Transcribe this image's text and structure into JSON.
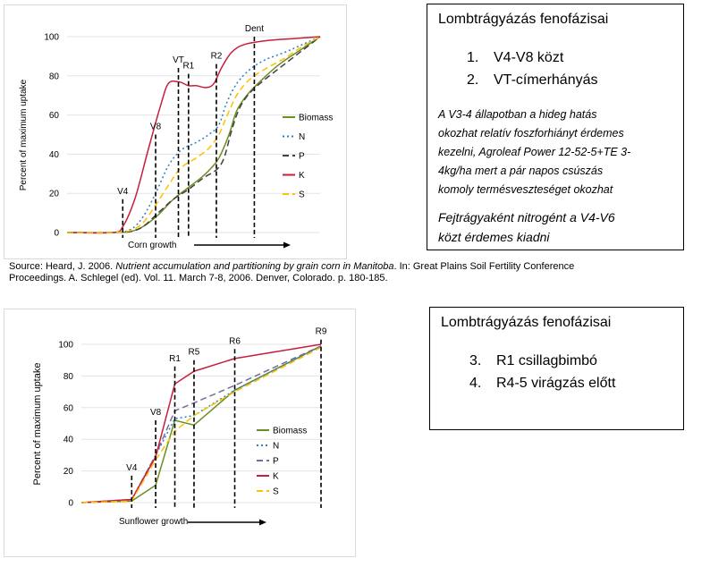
{
  "chart_data": [
    {
      "type": "line",
      "ylim": [
        0,
        100
      ],
      "yticks": [
        "0",
        "20",
        "40",
        "60",
        "80",
        "100"
      ],
      "xlabel": "Corn growth",
      "legend_position": "right",
      "series": [
        {
          "name": "Biomass",
          "color": "#6b8e23",
          "dash": "solid",
          "points": [
            [
              0,
              0
            ],
            [
              0.18,
              0
            ],
            [
              0.25,
              0.5
            ],
            [
              0.3,
              3
            ],
            [
              0.36,
              9
            ],
            [
              0.42,
              17
            ],
            [
              0.48,
              23
            ],
            [
              0.53,
              28
            ],
            [
              0.57,
              33
            ],
            [
              0.6,
              38
            ],
            [
              0.64,
              50
            ],
            [
              0.67,
              62
            ],
            [
              0.71,
              70
            ],
            [
              0.77,
              78
            ],
            [
              0.84,
              86
            ],
            [
              0.92,
              93
            ],
            [
              1,
              100
            ]
          ]
        },
        {
          "name": "N",
          "color": "#2e7fc1",
          "dash": "dot",
          "points": [
            [
              0,
              0
            ],
            [
              0.18,
              0
            ],
            [
              0.25,
              1.5
            ],
            [
              0.3,
              8
            ],
            [
              0.35,
              20
            ],
            [
              0.4,
              34
            ],
            [
              0.45,
              42
            ],
            [
              0.51,
              46
            ],
            [
              0.56,
              50
            ],
            [
              0.6,
              55
            ],
            [
              0.63,
              66
            ],
            [
              0.67,
              76
            ],
            [
              0.72,
              83
            ],
            [
              0.78,
              88
            ],
            [
              0.86,
              92
            ],
            [
              0.93,
              96
            ],
            [
              1,
              100
            ]
          ]
        },
        {
          "name": "P",
          "color": "#404040",
          "dash": "dash",
          "points": [
            [
              0,
              0
            ],
            [
              0.18,
              0
            ],
            [
              0.25,
              0.5
            ],
            [
              0.3,
              3
            ],
            [
              0.36,
              10
            ],
            [
              0.42,
              17
            ],
            [
              0.48,
              22
            ],
            [
              0.54,
              28
            ],
            [
              0.59,
              32
            ],
            [
              0.62,
              38
            ],
            [
              0.65,
              52
            ],
            [
              0.68,
              63
            ],
            [
              0.72,
              71
            ],
            [
              0.78,
              78
            ],
            [
              0.85,
              85
            ],
            [
              0.93,
              93
            ],
            [
              1,
              100
            ]
          ]
        },
        {
          "name": "K",
          "color": "#c81e3c",
          "dash": "solid",
          "points": [
            [
              0,
              0
            ],
            [
              0.18,
              0
            ],
            [
              0.22,
              3
            ],
            [
              0.27,
              18
            ],
            [
              0.32,
              42
            ],
            [
              0.37,
              65
            ],
            [
              0.4,
              76
            ],
            [
              0.44,
              77
            ],
            [
              0.48,
              75
            ],
            [
              0.51,
              75
            ],
            [
              0.55,
              74
            ],
            [
              0.58,
              76
            ],
            [
              0.61,
              84
            ],
            [
              0.65,
              92
            ],
            [
              0.7,
              96
            ],
            [
              0.79,
              98
            ],
            [
              0.89,
              99
            ],
            [
              1,
              100
            ]
          ]
        },
        {
          "name": "S",
          "color": "#ffc000",
          "dash": "dash",
          "points": [
            [
              0,
              0
            ],
            [
              0.18,
              0
            ],
            [
              0.25,
              1
            ],
            [
              0.3,
              5
            ],
            [
              0.35,
              14
            ],
            [
              0.4,
              24
            ],
            [
              0.45,
              33
            ],
            [
              0.51,
              38
            ],
            [
              0.56,
              43
            ],
            [
              0.6,
              50
            ],
            [
              0.63,
              59
            ],
            [
              0.67,
              70
            ],
            [
              0.72,
              78
            ],
            [
              0.79,
              84
            ],
            [
              0.86,
              89
            ],
            [
              0.93,
              95
            ],
            [
              1,
              100
            ]
          ]
        }
      ],
      "stages": [
        {
          "label": "V4",
          "x": 0.22,
          "y_top": 17
        },
        {
          "label": "V8",
          "x": 0.35,
          "y_top": 50
        },
        {
          "label": "VT",
          "x": 0.44,
          "y_top": 84
        },
        {
          "label": "R1",
          "x": 0.48,
          "y_top": 81
        },
        {
          "label": "R2",
          "x": 0.59,
          "y_top": 86
        },
        {
          "label": "Dent",
          "x": 0.74,
          "y_top": 100
        }
      ]
    },
    {
      "type": "line",
      "ylim": [
        0,
        100
      ],
      "yticks": [
        "0",
        "20",
        "40",
        "60",
        "80",
        "100"
      ],
      "ylabel": "Percent of maximum uptake",
      "xlabel": "Sunflower growth",
      "legend_position": "right",
      "series": [
        {
          "name": "Biomass",
          "color": "#6b8e23",
          "dash": "solid",
          "points": [
            [
              0,
              0
            ],
            [
              0.21,
              1
            ],
            [
              0.31,
              11
            ],
            [
              0.39,
              52
            ],
            [
              0.47,
              49
            ],
            [
              0.64,
              71
            ],
            [
              1,
              99
            ]
          ]
        },
        {
          "name": "N",
          "color": "#2e7fc1",
          "dash": "dot",
          "points": [
            [
              0,
              0
            ],
            [
              0.21,
              2
            ],
            [
              0.31,
              30
            ],
            [
              0.39,
              53
            ],
            [
              0.47,
              55
            ],
            [
              0.64,
              71
            ],
            [
              1,
              99
            ]
          ]
        },
        {
          "name": "P",
          "color": "#7a6b9e",
          "dash": "dash",
          "points": [
            [
              0,
              0
            ],
            [
              0.21,
              2
            ],
            [
              0.31,
              30
            ],
            [
              0.39,
              58
            ],
            [
              0.47,
              63
            ],
            [
              0.64,
              74
            ],
            [
              1,
              99
            ]
          ]
        },
        {
          "name": "K",
          "color": "#c81e3c",
          "dash": "solid",
          "points": [
            [
              0,
              0
            ],
            [
              0.21,
              2
            ],
            [
              0.31,
              29
            ],
            [
              0.39,
              75
            ],
            [
              0.47,
              83
            ],
            [
              0.64,
              91
            ],
            [
              1,
              100
            ]
          ]
        },
        {
          "name": "S",
          "color": "#ffc000",
          "dash": "dash",
          "points": [
            [
              0,
              0
            ],
            [
              0.21,
              1
            ],
            [
              0.31,
              27
            ],
            [
              0.39,
              45
            ],
            [
              0.47,
              55
            ],
            [
              0.64,
              70
            ],
            [
              1,
              98
            ]
          ]
        }
      ],
      "stages": [
        {
          "label": "V4",
          "x": 0.21,
          "y_top": 17
        },
        {
          "label": "V8",
          "x": 0.31,
          "y_top": 52
        },
        {
          "label": "R1",
          "x": 0.39,
          "y_top": 86
        },
        {
          "label": "R5",
          "x": 0.47,
          "y_top": 90
        },
        {
          "label": "R6",
          "x": 0.64,
          "y_top": 97
        },
        {
          "label": "R9",
          "x": 1.0,
          "y_top": 103
        }
      ]
    }
  ],
  "labels": {
    "chart1_ylabel": "Percent of maximum uptake",
    "chart2_ylabel": "Percent of maximum uptake"
  },
  "info1": {
    "title": "Lombtrágyázás fenofázisai",
    "items": [
      {
        "num": "1.",
        "text": "V4-V8 közt"
      },
      {
        "num": "2.",
        "text": "VT-címerhányás"
      }
    ],
    "note_lines": [
      "A V3-4 állapotban a hideg hatás",
      "okozhat relatív foszforhiányt érdemes",
      "kezelni, Agroleaf Power 12-52-5+TE 3-",
      "4kg/ha mert a pár napos csúszás",
      "komoly termésveszteséget okozhat"
    ],
    "note2_lines": [
      "Fejtrágyaként nitrogént a V4-V6",
      "közt érdemes kiadni"
    ]
  },
  "info2": {
    "title": "Lombtrágyázás fenofázisai",
    "items": [
      {
        "num": "3.",
        "text": "R1 csillagbimbó"
      },
      {
        "num": "4.",
        "text": "R4-5 virágzás előtt"
      }
    ]
  },
  "source": {
    "part1": "Source: Heard, J. 2006. ",
    "italic": "Nutrient accumulation and partitioning by grain corn in Manitoba",
    "part2": ". In: Great Plains Soil Fertility Conference",
    "line2": "Proceedings. A. Schlegel (ed). Vol. 11. March 7-8, 2006. Denver, Colorado. p. 180-185."
  }
}
